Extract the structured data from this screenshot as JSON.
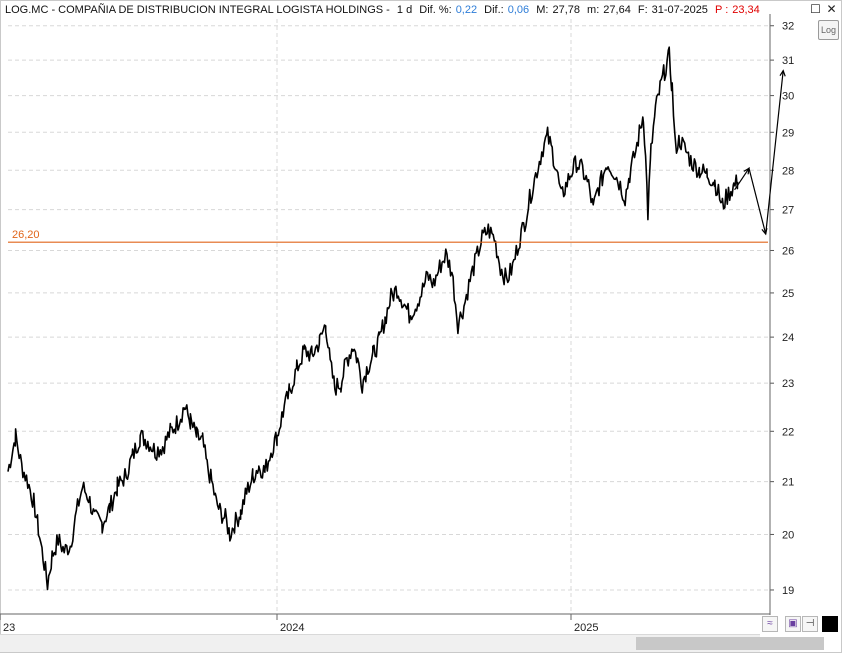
{
  "header": {
    "ticker": "LOG.MC - COMPAÑIA DE DISTRIBUCION INTEGRAL LOGISTA HOLDINGS -",
    "period": "1 d",
    "dif_pct_label": "Dif. %:",
    "dif_pct_value": "0,22",
    "dif_label": "Dif.:",
    "dif_value": "0,06",
    "max_label": "M:",
    "max_value": "27,78",
    "min_label": "m:",
    "min_value": "27,64",
    "date_label": "F:",
    "date_value": "31-07-2025",
    "p_label": "P :",
    "p_value": "23,34"
  },
  "window": {
    "maximize_icon": "maximize-icon",
    "close_icon": "close-icon"
  },
  "toolbar": {
    "log_label": "Log"
  },
  "colors": {
    "price": "#000000",
    "support": "#e0651a",
    "grid": "#d8d8d8"
  },
  "chart_data": {
    "type": "line",
    "title": "LOG.MC - COMPAÑIA DE DISTRIBUCION INTEGRAL LOGISTA HOLDINGS",
    "xlabel": "",
    "ylabel": "",
    "y_axis": "log",
    "ylim": [
      18.6,
      32.2
    ],
    "yticks": [
      19,
      20,
      21,
      22,
      23,
      24,
      25,
      26,
      27,
      28,
      29,
      30,
      31,
      32
    ],
    "x_tick_labels": [
      "23",
      "2024",
      "2025"
    ],
    "grid": true,
    "series": [
      {
        "values": [
          [
            0.0,
            21.2
          ],
          [
            0.01,
            21.9
          ],
          [
            0.018,
            21.3
          ],
          [
            0.026,
            21.0
          ],
          [
            0.034,
            20.6
          ],
          [
            0.04,
            20.1
          ],
          [
            0.046,
            19.6
          ],
          [
            0.052,
            19.1
          ],
          [
            0.058,
            19.6
          ],
          [
            0.066,
            19.9
          ],
          [
            0.074,
            19.7
          ],
          [
            0.082,
            19.8
          ],
          [
            0.09,
            20.4
          ],
          [
            0.098,
            20.9
          ],
          [
            0.106,
            20.7
          ],
          [
            0.114,
            20.3
          ],
          [
            0.124,
            20.2
          ],
          [
            0.134,
            20.5
          ],
          [
            0.144,
            20.9
          ],
          [
            0.154,
            21.1
          ],
          [
            0.164,
            21.5
          ],
          [
            0.174,
            21.9
          ],
          [
            0.184,
            21.8
          ],
          [
            0.194,
            21.6
          ],
          [
            0.204,
            21.7
          ],
          [
            0.214,
            22.0
          ],
          [
            0.224,
            22.2
          ],
          [
            0.232,
            22.5
          ],
          [
            0.24,
            22.2
          ],
          [
            0.248,
            21.9
          ],
          [
            0.256,
            21.8
          ],
          [
            0.262,
            21.3
          ],
          [
            0.268,
            21.0
          ],
          [
            0.274,
            20.6
          ],
          [
            0.28,
            20.4
          ],
          [
            0.286,
            20.3
          ],
          [
            0.292,
            20.0
          ],
          [
            0.298,
            20.2
          ],
          [
            0.306,
            20.4
          ],
          [
            0.314,
            20.8
          ],
          [
            0.322,
            21.1
          ],
          [
            0.33,
            21.3
          ],
          [
            0.338,
            21.2
          ],
          [
            0.346,
            21.6
          ],
          [
            0.354,
            21.9
          ],
          [
            0.362,
            22.4
          ],
          [
            0.37,
            22.8
          ],
          [
            0.38,
            23.3
          ],
          [
            0.39,
            23.7
          ],
          [
            0.4,
            23.6
          ],
          [
            0.41,
            23.9
          ],
          [
            0.418,
            24.3
          ],
          [
            0.424,
            23.4
          ],
          [
            0.43,
            22.9
          ],
          [
            0.438,
            23.0
          ],
          [
            0.446,
            23.5
          ],
          [
            0.454,
            23.8
          ],
          [
            0.46,
            23.5
          ],
          [
            0.466,
            23.0
          ],
          [
            0.472,
            23.3
          ],
          [
            0.48,
            23.6
          ],
          [
            0.488,
            23.9
          ],
          [
            0.496,
            24.4
          ],
          [
            0.504,
            24.9
          ],
          [
            0.512,
            25.1
          ],
          [
            0.52,
            24.8
          ],
          [
            0.528,
            24.5
          ],
          [
            0.536,
            24.7
          ],
          [
            0.544,
            25.0
          ],
          [
            0.552,
            25.4
          ],
          [
            0.56,
            25.2
          ],
          [
            0.568,
            25.6
          ],
          [
            0.576,
            25.9
          ],
          [
            0.584,
            25.5
          ],
          [
            0.592,
            24.3
          ],
          [
            0.6,
            24.7
          ],
          [
            0.608,
            25.3
          ],
          [
            0.616,
            25.8
          ],
          [
            0.624,
            26.3
          ],
          [
            0.632,
            26.5
          ],
          [
            0.64,
            26.3
          ],
          [
            0.648,
            25.6
          ],
          [
            0.656,
            25.3
          ],
          [
            0.664,
            25.6
          ],
          [
            0.672,
            26.2
          ],
          [
            0.68,
            26.7
          ],
          [
            0.688,
            27.4
          ],
          [
            0.696,
            28.0
          ],
          [
            0.704,
            28.6
          ],
          [
            0.71,
            28.9
          ],
          [
            0.716,
            28.5
          ],
          [
            0.722,
            28.0
          ],
          [
            0.728,
            27.3
          ],
          [
            0.734,
            27.6
          ],
          [
            0.74,
            27.9
          ],
          [
            0.748,
            28.2
          ],
          [
            0.756,
            28.0
          ],
          [
            0.764,
            27.6
          ],
          [
            0.77,
            27.0
          ],
          [
            0.776,
            27.5
          ],
          [
            0.782,
            27.8
          ],
          [
            0.788,
            28.2
          ],
          [
            0.796,
            28.0
          ],
          [
            0.804,
            27.7
          ],
          [
            0.812,
            27.3
          ],
          [
            0.818,
            27.9
          ],
          [
            0.826,
            28.5
          ],
          [
            0.832,
            29.1
          ],
          [
            0.836,
            29.5
          ],
          [
            0.839,
            28.3
          ],
          [
            0.842,
            26.9
          ],
          [
            0.846,
            28.5
          ],
          [
            0.852,
            29.6
          ],
          [
            0.858,
            30.2
          ],
          [
            0.864,
            30.7
          ],
          [
            0.87,
            31.1
          ],
          [
            0.874,
            30.2
          ],
          [
            0.878,
            28.6
          ],
          [
            0.884,
            28.8
          ],
          [
            0.892,
            28.5
          ],
          [
            0.9,
            28.2
          ],
          [
            0.91,
            28.0
          ],
          [
            0.92,
            27.9
          ],
          [
            0.93,
            27.7
          ],
          [
            0.94,
            27.1
          ],
          [
            0.948,
            27.4
          ],
          [
            0.955,
            27.6
          ],
          [
            0.96,
            27.7
          ]
        ]
      }
    ],
    "annotations": [
      {
        "type": "hline",
        "y": 26.2,
        "label": "26,20",
        "color": "#e0651a"
      },
      {
        "type": "polyline",
        "points": [
          [
            0.956,
            27.5
          ],
          [
            0.975,
            28.05
          ],
          [
            0.997,
            26.4
          ],
          [
            1.02,
            30.7
          ]
        ],
        "arrow_end": true
      }
    ]
  }
}
